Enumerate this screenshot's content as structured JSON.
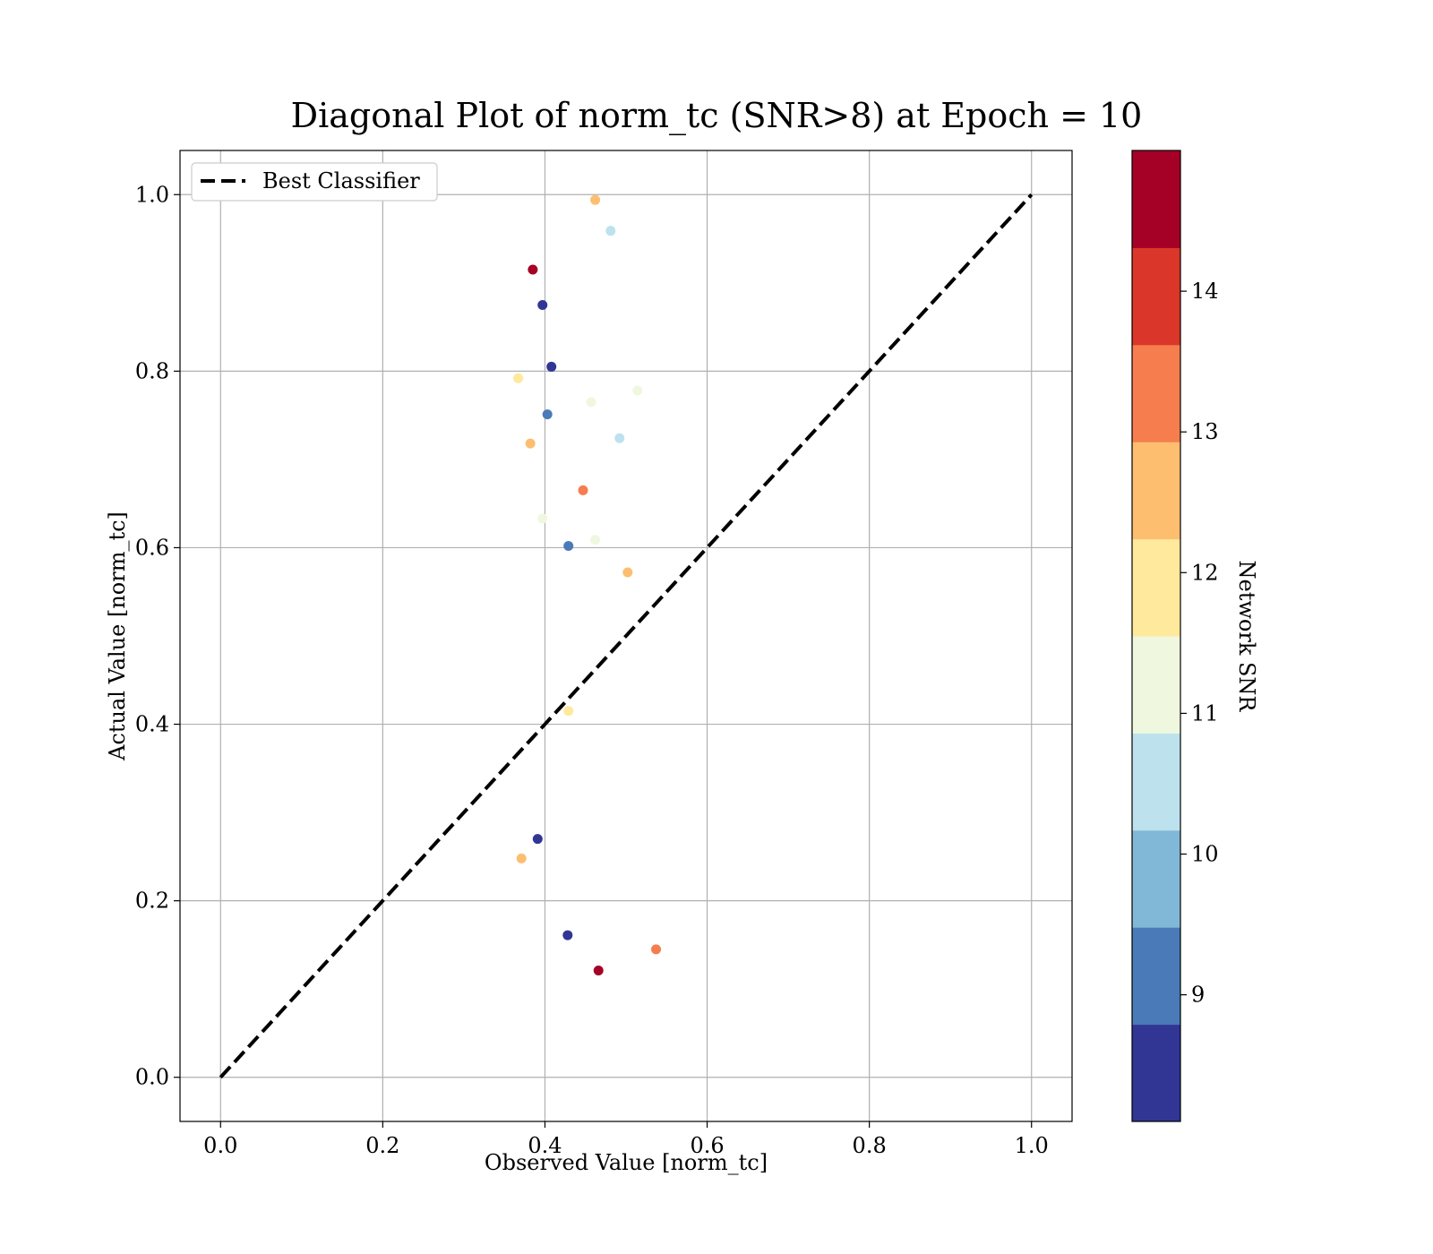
{
  "chart_data": {
    "type": "scatter",
    "title": "Diagonal Plot of norm_tc (SNR>8) at Epoch = 10",
    "xlabel": "Observed Value [norm_tc]",
    "ylabel": "Actual Value [norm_tc]",
    "xlim": [
      -0.05,
      1.05
    ],
    "ylim": [
      -0.05,
      1.05
    ],
    "x_ticks": [
      "0.0",
      "0.2",
      "0.4",
      "0.6",
      "0.8",
      "1.0"
    ],
    "y_ticks": [
      "0.0",
      "0.2",
      "0.4",
      "0.6",
      "0.8",
      "1.0"
    ],
    "grid": true,
    "legend": {
      "placement": "top-left",
      "entries": [
        "Best Classifier"
      ]
    },
    "reference_line": {
      "name": "Best Classifier",
      "style": "dashed",
      "color": "#000000",
      "x": [
        0,
        1
      ],
      "y": [
        0,
        1
      ]
    },
    "colorbar": {
      "label": "Network SNR",
      "min": 8.1,
      "max": 15.0,
      "ticks": [
        "9",
        "10",
        "11",
        "12",
        "13",
        "14"
      ],
      "colors": [
        "#313695",
        "#4a7ab7",
        "#82b8d7",
        "#bde2ed",
        "#eff8df",
        "#fee99d",
        "#fdbe70",
        "#f57d4e",
        "#da372a",
        "#a50026"
      ]
    },
    "points": [
      {
        "x": 0.462,
        "y": 0.994,
        "snr": 12.5
      },
      {
        "x": 0.481,
        "y": 0.959,
        "snr": 10.5
      },
      {
        "x": 0.385,
        "y": 0.915,
        "snr": 14.6
      },
      {
        "x": 0.397,
        "y": 0.875,
        "snr": 8.4
      },
      {
        "x": 0.408,
        "y": 0.805,
        "snr": 8.5
      },
      {
        "x": 0.367,
        "y": 0.792,
        "snr": 11.9
      },
      {
        "x": 0.457,
        "y": 0.765,
        "snr": 11.3
      },
      {
        "x": 0.514,
        "y": 0.778,
        "snr": 11.3
      },
      {
        "x": 0.403,
        "y": 0.751,
        "snr": 9.1
      },
      {
        "x": 0.492,
        "y": 0.724,
        "snr": 10.5
      },
      {
        "x": 0.382,
        "y": 0.718,
        "snr": 12.5
      },
      {
        "x": 0.447,
        "y": 0.665,
        "snr": 13.2
      },
      {
        "x": 0.397,
        "y": 0.633,
        "snr": 11.3
      },
      {
        "x": 0.462,
        "y": 0.609,
        "snr": 11.3
      },
      {
        "x": 0.429,
        "y": 0.602,
        "snr": 9.1
      },
      {
        "x": 0.502,
        "y": 0.572,
        "snr": 12.5
      },
      {
        "x": 0.429,
        "y": 0.415,
        "snr": 11.9
      },
      {
        "x": 0.391,
        "y": 0.27,
        "snr": 8.4
      },
      {
        "x": 0.371,
        "y": 0.248,
        "snr": 12.5
      },
      {
        "x": 0.428,
        "y": 0.161,
        "snr": 8.4
      },
      {
        "x": 0.537,
        "y": 0.145,
        "snr": 13.2
      },
      {
        "x": 0.466,
        "y": 0.121,
        "snr": 14.6
      }
    ]
  }
}
